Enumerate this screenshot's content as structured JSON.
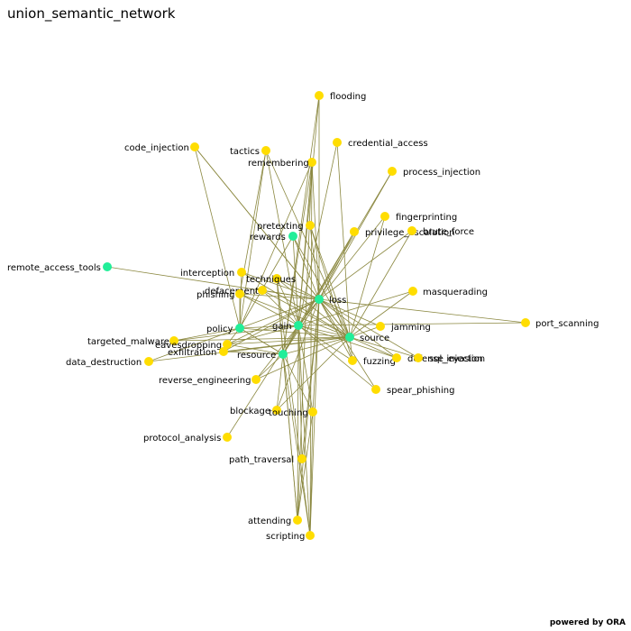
{
  "title": "union_semantic_network",
  "credit": "powered by ORA",
  "colors": {
    "edge": "#8b8840",
    "concept_node": "#ffdd00",
    "hub_node": "#22ee99"
  },
  "nodes": [
    {
      "id": "flooding",
      "label": "flooding",
      "kind": "concept"
    },
    {
      "id": "code_injection",
      "label": "code_injection",
      "kind": "concept"
    },
    {
      "id": "tactics",
      "label": "tactics",
      "kind": "concept"
    },
    {
      "id": "credential_access",
      "label": "credential_access",
      "kind": "concept"
    },
    {
      "id": "remembering",
      "label": "remembering",
      "kind": "concept"
    },
    {
      "id": "process_injection",
      "label": "process_injection",
      "kind": "concept"
    },
    {
      "id": "fingerprinting",
      "label": "fingerprinting",
      "kind": "concept"
    },
    {
      "id": "pretexting",
      "label": "pretexting",
      "kind": "concept"
    },
    {
      "id": "privilege_escalation",
      "label": "privilege_escalation",
      "kind": "concept"
    },
    {
      "id": "brute_force",
      "label": "brute_force",
      "kind": "concept"
    },
    {
      "id": "rewards",
      "label": "rewards",
      "kind": "hub"
    },
    {
      "id": "remote_access_tools",
      "label": "remote_access_tools",
      "kind": "hub"
    },
    {
      "id": "interception",
      "label": "interception",
      "kind": "concept"
    },
    {
      "id": "techniques",
      "label": "techniques",
      "kind": "concept"
    },
    {
      "id": "defacement",
      "label": "defacement",
      "kind": "concept"
    },
    {
      "id": "phishing",
      "label": "phishing",
      "kind": "concept"
    },
    {
      "id": "masquerading",
      "label": "masquerading",
      "kind": "concept"
    },
    {
      "id": "loss",
      "label": "loss",
      "kind": "hub"
    },
    {
      "id": "policy",
      "label": "policy",
      "kind": "hub"
    },
    {
      "id": "gain",
      "label": "gain",
      "kind": "hub"
    },
    {
      "id": "jamming",
      "label": "jamming",
      "kind": "concept"
    },
    {
      "id": "port_scanning",
      "label": "port_scanning",
      "kind": "concept"
    },
    {
      "id": "source",
      "label": "source",
      "kind": "hub"
    },
    {
      "id": "targeted_malware",
      "label": "targeted_malware",
      "kind": "concept"
    },
    {
      "id": "eavesdropping",
      "label": "eavesdropping",
      "kind": "concept"
    },
    {
      "id": "exfiltration",
      "label": "exfiltration",
      "kind": "concept"
    },
    {
      "id": "resource",
      "label": "resource",
      "kind": "hub"
    },
    {
      "id": "data_destruction",
      "label": "data_destruction",
      "kind": "concept"
    },
    {
      "id": "fuzzing",
      "label": "fuzzing",
      "kind": "concept"
    },
    {
      "id": "defense_evasion",
      "label": "defense_evasion",
      "kind": "concept"
    },
    {
      "id": "sql_injection",
      "label": "sql_injection",
      "kind": "concept"
    },
    {
      "id": "reverse_engineering",
      "label": "reverse_engineering",
      "kind": "concept"
    },
    {
      "id": "spear_phishing",
      "label": "spear_phishing",
      "kind": "concept"
    },
    {
      "id": "blockage",
      "label": "blockage",
      "kind": "concept"
    },
    {
      "id": "touching",
      "label": "touching",
      "kind": "concept"
    },
    {
      "id": "protocol_analysis",
      "label": "protocol_analysis",
      "kind": "concept"
    },
    {
      "id": "path_traversal",
      "label": "path_traversal",
      "kind": "concept"
    },
    {
      "id": "attending",
      "label": "attending",
      "kind": "concept"
    },
    {
      "id": "scripting",
      "label": "scripting",
      "kind": "concept"
    }
  ],
  "edges": [
    [
      "flooding",
      "loss"
    ],
    [
      "flooding",
      "gain"
    ],
    [
      "flooding",
      "resource"
    ],
    [
      "code_injection",
      "loss"
    ],
    [
      "code_injection",
      "policy"
    ],
    [
      "code_injection",
      "source"
    ],
    [
      "tactics",
      "policy"
    ],
    [
      "tactics",
      "gain"
    ],
    [
      "tactics",
      "phishing"
    ],
    [
      "tactics",
      "source"
    ],
    [
      "credential_access",
      "gain"
    ],
    [
      "credential_access",
      "source"
    ],
    [
      "remembering",
      "loss"
    ],
    [
      "remembering",
      "gain"
    ],
    [
      "remembering",
      "resource"
    ],
    [
      "remembering",
      "scripting"
    ],
    [
      "remembering",
      "attending"
    ],
    [
      "remembering",
      "policy"
    ],
    [
      "process_injection",
      "loss"
    ],
    [
      "process_injection",
      "resource"
    ],
    [
      "fingerprinting",
      "source"
    ],
    [
      "fingerprinting",
      "loss"
    ],
    [
      "pretexting",
      "loss"
    ],
    [
      "pretexting",
      "fuzzing"
    ],
    [
      "pretexting",
      "source"
    ],
    [
      "privilege_escalation",
      "loss"
    ],
    [
      "privilege_escalation",
      "gain"
    ],
    [
      "privilege_escalation",
      "resource"
    ],
    [
      "brute_force",
      "loss"
    ],
    [
      "brute_force",
      "source"
    ],
    [
      "rewards",
      "loss"
    ],
    [
      "rewards",
      "policy"
    ],
    [
      "rewards",
      "gain"
    ],
    [
      "rewards",
      "source"
    ],
    [
      "remote_access_tools",
      "loss"
    ],
    [
      "interception",
      "policy"
    ],
    [
      "interception",
      "source"
    ],
    [
      "interception",
      "loss"
    ],
    [
      "techniques",
      "loss"
    ],
    [
      "techniques",
      "source"
    ],
    [
      "techniques",
      "resource"
    ],
    [
      "techniques",
      "gain"
    ],
    [
      "techniques",
      "scripting"
    ],
    [
      "techniques",
      "attending"
    ],
    [
      "defacement",
      "loss"
    ],
    [
      "defacement",
      "source"
    ],
    [
      "defacement",
      "gain"
    ],
    [
      "phishing",
      "loss"
    ],
    [
      "phishing",
      "source"
    ],
    [
      "phishing",
      "policy"
    ],
    [
      "phishing",
      "gain"
    ],
    [
      "masquerading",
      "source"
    ],
    [
      "masquerading",
      "gain"
    ],
    [
      "loss",
      "policy"
    ],
    [
      "loss",
      "gain"
    ],
    [
      "loss",
      "source"
    ],
    [
      "loss",
      "resource"
    ],
    [
      "loss",
      "port_scanning"
    ],
    [
      "loss",
      "jamming"
    ],
    [
      "loss",
      "defense_evasion"
    ],
    [
      "loss",
      "sql_injection"
    ],
    [
      "loss",
      "spear_phishing"
    ],
    [
      "loss",
      "fuzzing"
    ],
    [
      "loss",
      "touching"
    ],
    [
      "loss",
      "scripting"
    ],
    [
      "loss",
      "attending"
    ],
    [
      "loss",
      "path_traversal"
    ],
    [
      "loss",
      "exfiltration"
    ],
    [
      "loss",
      "reverse_engineering"
    ],
    [
      "loss",
      "eavesdropping"
    ],
    [
      "loss",
      "blockage"
    ],
    [
      "gain",
      "policy"
    ],
    [
      "gain",
      "resource"
    ],
    [
      "gain",
      "source"
    ],
    [
      "gain",
      "port_scanning"
    ],
    [
      "gain",
      "fuzzing"
    ],
    [
      "gain",
      "spear_phishing"
    ],
    [
      "gain",
      "touching"
    ],
    [
      "gain",
      "attending"
    ],
    [
      "gain",
      "scripting"
    ],
    [
      "gain",
      "path_traversal"
    ],
    [
      "gain",
      "protocol_analysis"
    ],
    [
      "gain",
      "eavesdropping"
    ],
    [
      "gain",
      "targeted_malware"
    ],
    [
      "gain",
      "defense_evasion"
    ],
    [
      "source",
      "policy"
    ],
    [
      "source",
      "resource"
    ],
    [
      "source",
      "jamming"
    ],
    [
      "source",
      "fuzzing"
    ],
    [
      "source",
      "defense_evasion"
    ],
    [
      "source",
      "sql_injection"
    ],
    [
      "source",
      "data_destruction"
    ],
    [
      "source",
      "targeted_malware"
    ],
    [
      "source",
      "eavesdropping"
    ],
    [
      "source",
      "exfiltration"
    ],
    [
      "source",
      "reverse_engineering"
    ],
    [
      "source",
      "blockage"
    ],
    [
      "resource",
      "policy"
    ],
    [
      "resource",
      "eavesdropping"
    ],
    [
      "resource",
      "exfiltration"
    ],
    [
      "resource",
      "reverse_engineering"
    ],
    [
      "resource",
      "blockage"
    ],
    [
      "resource",
      "touching"
    ],
    [
      "resource",
      "attending"
    ],
    [
      "resource",
      "scripting"
    ],
    [
      "policy",
      "data_destruction"
    ],
    [
      "policy",
      "targeted_malware"
    ],
    [
      "policy",
      "eavesdropping"
    ],
    [
      "policy",
      "resource"
    ],
    [
      "touching",
      "attending"
    ],
    [
      "touching",
      "scripting"
    ]
  ]
}
